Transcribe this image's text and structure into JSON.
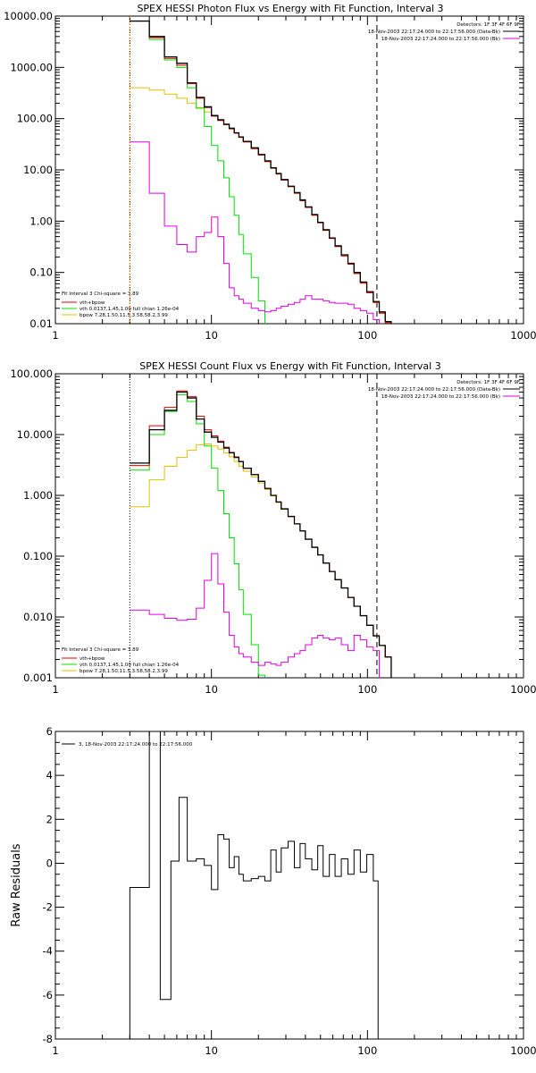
{
  "colors": {
    "data": "#000000",
    "total": "#e00000",
    "vth": "#00e000",
    "bpow": "#e0c000",
    "background": "#e000e0",
    "low_limit": "#ff8000"
  },
  "chart_data": [
    {
      "type": "line",
      "title": "SPEX HESSI Photon Flux vs Energy with Fit Function, Interval 3",
      "xscale": "log",
      "yscale": "log",
      "xlim": [
        1,
        1000
      ],
      "ylim": [
        0.01,
        10000
      ],
      "xticks": [
        "1",
        "10",
        "100",
        "1000"
      ],
      "yticks": [
        "0.01",
        "0.10",
        "1.00",
        "10.00",
        "100.00",
        "1000.00",
        "10000.00"
      ],
      "fit_range_line_x": 3,
      "dashed_line_x": 115,
      "info": {
        "detectors": "Detectors: 1F 3F 4F 6F 9F",
        "interval": "18-Nov-2003 22:17:24.000 to 22:17:56.000 (Data-Bk)",
        "background": "18-Nov-2003 22:17:24.000 to 22:17:56.000 (Bk)"
      },
      "legend": {
        "fit_label": "Fit Interval 3   Chi-square = 3.89",
        "entries": [
          "vth+bpow",
          "vth 0.0137,1.45,1.00  full chian 1.26e-04",
          "bpow 7.28,1.50,11.5,3.58,58.2,3.99"
        ]
      },
      "edges": [
        3,
        3.5,
        4,
        5,
        6,
        7,
        8,
        9,
        10,
        11,
        12,
        13,
        14,
        15,
        16,
        18,
        20,
        22,
        24,
        26,
        28,
        31,
        34,
        37,
        40,
        44,
        48,
        52,
        57,
        62,
        68,
        75,
        82,
        90,
        99,
        109,
        119,
        130,
        142
      ],
      "series": [
        {
          "name": "Data-Bk",
          "values": [
            8000,
            8000,
            4000,
            1600,
            1200,
            500,
            260,
            170,
            115,
            95,
            78,
            65,
            53,
            44,
            36,
            27,
            20,
            15,
            11,
            8.5,
            6.5,
            4.8,
            3.6,
            2.6,
            1.9,
            1.35,
            0.95,
            0.68,
            0.47,
            0.33,
            0.22,
            0.15,
            0.1,
            0.065,
            0.042,
            0.027,
            0.017,
            0.011
          ]
        },
        {
          "name": "vth+bpow",
          "values": [
            8000,
            8000,
            3800,
            1500,
            1100,
            480,
            250,
            165,
            112,
            92,
            76,
            63,
            52,
            43,
            35,
            26,
            19.5,
            14.5,
            10.8,
            8.3,
            6.3,
            4.7,
            3.5,
            2.5,
            1.85,
            1.3,
            0.93,
            0.66,
            0.46,
            0.32,
            0.21,
            0.145,
            0.095,
            0.062,
            0.04,
            0.026,
            0.016,
            0.0105
          ]
        },
        {
          "name": "vth",
          "values": [
            8000,
            8000,
            3500,
            1400,
            1000,
            400,
            160,
            70,
            30,
            15,
            7,
            3,
            1.3,
            0.55,
            0.23,
            0.08,
            0.028,
            0.009
          ]
        },
        {
          "name": "bpow",
          "values": [
            400,
            400,
            360,
            300,
            250,
            200,
            165,
            135,
            112,
            92,
            76,
            63,
            52,
            43,
            35,
            26,
            19.5,
            14.5,
            10.8,
            8.3,
            6.3,
            4.7,
            3.5,
            2.5,
            1.85,
            1.3,
            0.93,
            0.66,
            0.46,
            0.32,
            0.21,
            0.145,
            0.095,
            0.062,
            0.04,
            0.026,
            0.016,
            0.0105
          ]
        },
        {
          "name": "Bk",
          "values": [
            35,
            35,
            3.5,
            0.8,
            0.35,
            0.25,
            0.5,
            0.6,
            1.2,
            0.5,
            0.15,
            0.05,
            0.035,
            0.03,
            0.025,
            0.02,
            0.018,
            0.017,
            0.018,
            0.02,
            0.022,
            0.024,
            0.026,
            0.03,
            0.035,
            0.03,
            0.03,
            0.028,
            0.026,
            0.025,
            0.025,
            0.024,
            0.02,
            0.018,
            0.016,
            0.012
          ]
        }
      ]
    },
    {
      "type": "line",
      "title": "SPEX HESSI Count Flux vs Energy with Fit Function, Interval 3",
      "xscale": "log",
      "yscale": "log",
      "xlim": [
        1,
        1000
      ],
      "ylim": [
        0.001,
        100
      ],
      "xticks": [
        "1",
        "10",
        "100",
        "1000"
      ],
      "yticks": [
        "0.001",
        "0.010",
        "0.100",
        "1.000",
        "10.000",
        "100.000"
      ],
      "fit_range_line_x": 3,
      "dashed_line_x": 115,
      "info": {
        "detectors": "Detectors: 1F 3F 4F 6F 9F",
        "interval": "18-Nov-2003 22:17:24.000 to 22:17:56.000 (Data-Bk)",
        "background": "18-Nov-2003 22:17:24.000 to 22:17:56.000 (Bk)"
      },
      "legend": {
        "fit_label": "Fit Interval 3   Chi-square = 3.89",
        "entries": [
          "vth+bpow",
          "vth 0.0137,1.45,1.00  full chian 1.26e-04",
          "bpow 7.28,1.50,11.5,3.58,58.2,3.99"
        ]
      },
      "edges": [
        3,
        4,
        5,
        6,
        7,
        8,
        9,
        10,
        11,
        12,
        13,
        14,
        15,
        16,
        18,
        20,
        22,
        24,
        26,
        28,
        31,
        34,
        37,
        40,
        44,
        48,
        52,
        57,
        62,
        68,
        75,
        82,
        90,
        99,
        109,
        119,
        130,
        142
      ],
      "series": [
        {
          "name": "Data-Bk",
          "values": [
            3.4,
            12,
            25,
            50,
            40,
            18,
            11,
            9,
            7.5,
            6,
            5,
            4.2,
            3.6,
            2.8,
            2.2,
            1.7,
            1.3,
            1.0,
            0.78,
            0.6,
            0.45,
            0.34,
            0.26,
            0.19,
            0.14,
            0.105,
            0.077,
            0.056,
            0.041,
            0.03,
            0.021,
            0.015,
            0.0105,
            0.0073,
            0.0049,
            0.0034,
            0.0022
          ]
        },
        {
          "name": "vth+bpow",
          "values": [
            3.1,
            14,
            28,
            52,
            42,
            20,
            12,
            9.5,
            7.8,
            6.2,
            5.1,
            4.3,
            3.6,
            2.8,
            2.2,
            1.7,
            1.3,
            1.0,
            0.78,
            0.6,
            0.45,
            0.34,
            0.26,
            0.19,
            0.14,
            0.105,
            0.077,
            0.056,
            0.041,
            0.03,
            0.021,
            0.015,
            0.0105,
            0.0073,
            0.0049,
            0.0034,
            0.0022
          ]
        },
        {
          "name": "vth",
          "values": [
            2.6,
            10,
            24,
            45,
            35,
            15,
            6.5,
            2.8,
            1.2,
            0.5,
            0.2,
            0.075,
            0.028,
            0.011,
            0.0035,
            0.0011,
            0.0004
          ]
        },
        {
          "name": "bpow",
          "values": [
            0.65,
            1.8,
            3.0,
            4.2,
            5.5,
            6.8,
            7.0,
            6.5,
            5.8,
            5.0,
            4.3,
            3.6,
            3.0,
            2.5,
            2.0,
            1.6,
            1.25,
            0.98,
            0.76,
            0.59,
            0.45,
            0.34,
            0.26,
            0.19,
            0.14,
            0.105,
            0.077,
            0.056,
            0.041,
            0.03,
            0.021,
            0.015,
            0.0105,
            0.0073,
            0.0049,
            0.0034,
            0.0022
          ]
        },
        {
          "name": "Bk",
          "values": [
            0.013,
            0.011,
            0.0095,
            0.0088,
            0.0092,
            0.014,
            0.04,
            0.11,
            0.035,
            0.012,
            0.005,
            0.0032,
            0.0025,
            0.0022,
            0.0018,
            0.0016,
            0.0018,
            0.0017,
            0.0016,
            0.0018,
            0.0022,
            0.0025,
            0.0028,
            0.0035,
            0.0045,
            0.005,
            0.0045,
            0.0042,
            0.0045,
            0.0035,
            0.0028,
            0.005,
            0.0042,
            0.0032,
            0.0028
          ]
        }
      ]
    },
    {
      "type": "line",
      "title": "",
      "xscale": "log",
      "xlim": [
        1,
        1000
      ],
      "ylim": [
        -8,
        6
      ],
      "xticks": [
        "1",
        "10",
        "100",
        "1000"
      ],
      "yticks": [
        "-8",
        "-6",
        "-4",
        "-2",
        "0",
        "2",
        "4",
        "6"
      ],
      "ylabel": "Raw Residuals",
      "legend": {
        "entries": [
          "3, 18-Nov-2003 22:17:24.000 to 22:17:56.000"
        ]
      },
      "edges": [
        3,
        4,
        4.7,
        5.5,
        6.2,
        7,
        8,
        9,
        10,
        11,
        12,
        13,
        14,
        15,
        16,
        18,
        20,
        22,
        24,
        26,
        28,
        31,
        34,
        37,
        40,
        44,
        48,
        52,
        57,
        62,
        68,
        75,
        82,
        90,
        99,
        109,
        117
      ],
      "series": [
        {
          "name": "3, 18-Nov-2003 22:17:24.000 to 22:17:56.000",
          "values": [
            -1.1,
            6.0,
            -6.2,
            0.1,
            3.0,
            0.1,
            0.2,
            -0.1,
            -1.2,
            1.3,
            1.1,
            -0.2,
            0.3,
            -0.5,
            -0.8,
            -0.7,
            -0.6,
            -0.8,
            0.6,
            -0.4,
            0.7,
            1.0,
            -0.2,
            0.9,
            0.2,
            -0.3,
            0.8,
            -0.6,
            0.4,
            -0.6,
            0.2,
            -0.5,
            0.6,
            -0.4,
            0.4,
            -0.8
          ]
        }
      ]
    }
  ]
}
